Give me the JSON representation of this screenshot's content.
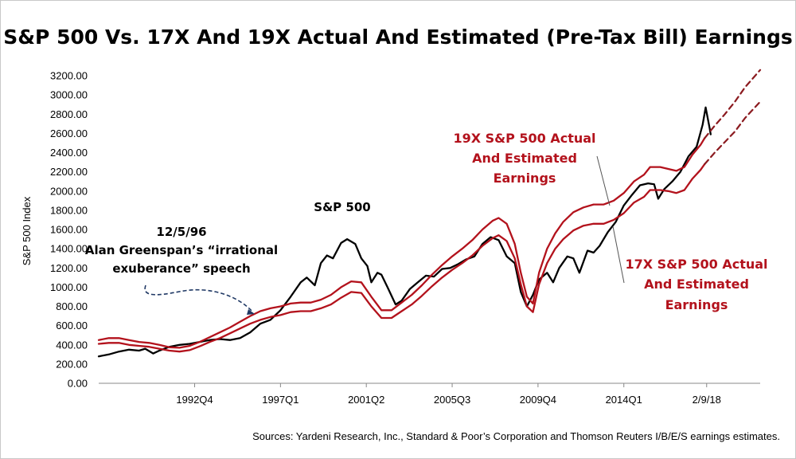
{
  "chart_data": {
    "type": "line",
    "title": "S&P 500 Vs. 17X And 19X Actual And Estimated (Pre-Tax Bill) Earnings",
    "ylabel": "S&P 500 Index",
    "ylim": [
      0,
      3200
    ],
    "yticks": [
      "0.00",
      "200.00",
      "400.00",
      "600.00",
      "800.00",
      "1000.00",
      "1200.00",
      "1400.00",
      "1600.00",
      "1800.00",
      "2000.00",
      "2200.00",
      "2400.00",
      "2600.00",
      "2800.00",
      "3000.00",
      "3200.00"
    ],
    "xlim": [
      1988.0,
      2020.75
    ],
    "xticks": [
      {
        "x": 1992.75,
        "label": "1992Q4"
      },
      {
        "x": 1997.0,
        "label": "1997Q1"
      },
      {
        "x": 2001.25,
        "label": "2001Q2"
      },
      {
        "x": 2005.5,
        "label": "2005Q3"
      },
      {
        "x": 2009.75,
        "label": "2009Q4"
      },
      {
        "x": 2014.0,
        "label": "2014Q1"
      },
      {
        "x": 2018.1,
        "label": "2/9/18"
      }
    ],
    "series": [
      {
        "name": "S&P 500",
        "color": "#000000",
        "style": "solid",
        "points": [
          [
            1988.0,
            280
          ],
          [
            1988.5,
            300
          ],
          [
            1989.0,
            330
          ],
          [
            1989.5,
            350
          ],
          [
            1990.0,
            340
          ],
          [
            1990.3,
            360
          ],
          [
            1990.7,
            310
          ],
          [
            1991.0,
            340
          ],
          [
            1991.5,
            380
          ],
          [
            1992.0,
            400
          ],
          [
            1992.5,
            410
          ],
          [
            1993.0,
            430
          ],
          [
            1993.5,
            450
          ],
          [
            1994.0,
            460
          ],
          [
            1994.5,
            450
          ],
          [
            1995.0,
            470
          ],
          [
            1995.5,
            530
          ],
          [
            1996.0,
            620
          ],
          [
            1996.5,
            660
          ],
          [
            1997.0,
            760
          ],
          [
            1997.5,
            900
          ],
          [
            1998.0,
            1050
          ],
          [
            1998.3,
            1100
          ],
          [
            1998.7,
            1020
          ],
          [
            1999.0,
            1250
          ],
          [
            1999.3,
            1330
          ],
          [
            1999.6,
            1300
          ],
          [
            2000.0,
            1460
          ],
          [
            2000.3,
            1500
          ],
          [
            2000.7,
            1450
          ],
          [
            2001.0,
            1300
          ],
          [
            2001.3,
            1220
          ],
          [
            2001.5,
            1050
          ],
          [
            2001.8,
            1150
          ],
          [
            2002.0,
            1130
          ],
          [
            2002.3,
            1000
          ],
          [
            2002.7,
            820
          ],
          [
            2003.0,
            860
          ],
          [
            2003.4,
            980
          ],
          [
            2003.8,
            1050
          ],
          [
            2004.2,
            1120
          ],
          [
            2004.6,
            1110
          ],
          [
            2005.0,
            1190
          ],
          [
            2005.4,
            1200
          ],
          [
            2005.8,
            1240
          ],
          [
            2006.2,
            1290
          ],
          [
            2006.6,
            1320
          ],
          [
            2007.0,
            1450
          ],
          [
            2007.4,
            1520
          ],
          [
            2007.8,
            1490
          ],
          [
            2008.2,
            1320
          ],
          [
            2008.6,
            1250
          ],
          [
            2008.9,
            950
          ],
          [
            2009.2,
            800
          ],
          [
            2009.5,
            920
          ],
          [
            2009.8,
            1080
          ],
          [
            2010.2,
            1150
          ],
          [
            2010.5,
            1050
          ],
          [
            2010.8,
            1200
          ],
          [
            2011.2,
            1320
          ],
          [
            2011.5,
            1300
          ],
          [
            2011.8,
            1150
          ],
          [
            2012.2,
            1380
          ],
          [
            2012.5,
            1360
          ],
          [
            2012.8,
            1430
          ],
          [
            2013.2,
            1570
          ],
          [
            2013.6,
            1680
          ],
          [
            2014.0,
            1850
          ],
          [
            2014.4,
            1960
          ],
          [
            2014.8,
            2060
          ],
          [
            2015.2,
            2080
          ],
          [
            2015.5,
            2070
          ],
          [
            2015.7,
            1920
          ],
          [
            2016.0,
            2020
          ],
          [
            2016.4,
            2100
          ],
          [
            2016.8,
            2200
          ],
          [
            2017.2,
            2360
          ],
          [
            2017.6,
            2460
          ],
          [
            2017.9,
            2690
          ],
          [
            2018.05,
            2870
          ],
          [
            2018.25,
            2650
          ],
          [
            2018.3,
            2590
          ]
        ]
      },
      {
        "name": "19X S&P 500 Actual And Estimated Earnings",
        "color": "#b3121c",
        "style": "solid",
        "points": [
          [
            1988.0,
            450
          ],
          [
            1988.5,
            470
          ],
          [
            1989.0,
            470
          ],
          [
            1989.5,
            450
          ],
          [
            1990.0,
            430
          ],
          [
            1990.5,
            420
          ],
          [
            1991.0,
            400
          ],
          [
            1991.5,
            375
          ],
          [
            1992.0,
            370
          ],
          [
            1992.5,
            390
          ],
          [
            1993.0,
            430
          ],
          [
            1993.5,
            480
          ],
          [
            1994.0,
            530
          ],
          [
            1994.5,
            580
          ],
          [
            1995.0,
            640
          ],
          [
            1995.5,
            700
          ],
          [
            1996.0,
            750
          ],
          [
            1996.5,
            780
          ],
          [
            1997.0,
            800
          ],
          [
            1997.5,
            830
          ],
          [
            1998.0,
            840
          ],
          [
            1998.5,
            840
          ],
          [
            1999.0,
            870
          ],
          [
            1999.5,
            920
          ],
          [
            2000.0,
            1000
          ],
          [
            2000.5,
            1060
          ],
          [
            2001.0,
            1050
          ],
          [
            2001.5,
            900
          ],
          [
            2002.0,
            760
          ],
          [
            2002.5,
            760
          ],
          [
            2003.0,
            840
          ],
          [
            2003.5,
            920
          ],
          [
            2004.0,
            1020
          ],
          [
            2004.5,
            1130
          ],
          [
            2005.0,
            1230
          ],
          [
            2005.5,
            1320
          ],
          [
            2006.0,
            1400
          ],
          [
            2006.5,
            1490
          ],
          [
            2007.0,
            1600
          ],
          [
            2007.5,
            1690
          ],
          [
            2007.8,
            1720
          ],
          [
            2008.2,
            1660
          ],
          [
            2008.6,
            1450
          ],
          [
            2008.9,
            1150
          ],
          [
            2009.2,
            900
          ],
          [
            2009.5,
            830
          ],
          [
            2009.8,
            1150
          ],
          [
            2010.2,
            1400
          ],
          [
            2010.6,
            1560
          ],
          [
            2011.0,
            1680
          ],
          [
            2011.5,
            1780
          ],
          [
            2012.0,
            1830
          ],
          [
            2012.5,
            1860
          ],
          [
            2013.0,
            1860
          ],
          [
            2013.5,
            1900
          ],
          [
            2014.0,
            1980
          ],
          [
            2014.5,
            2100
          ],
          [
            2015.0,
            2170
          ],
          [
            2015.3,
            2250
          ],
          [
            2015.8,
            2250
          ],
          [
            2016.2,
            2230
          ],
          [
            2016.6,
            2210
          ],
          [
            2017.0,
            2250
          ],
          [
            2017.4,
            2380
          ],
          [
            2017.8,
            2480
          ],
          [
            2018.0,
            2550
          ]
        ]
      },
      {
        "name": "17X S&P 500 Actual And Estimated Earnings",
        "color": "#b3121c",
        "style": "solid",
        "points": [
          [
            1988.0,
            410
          ],
          [
            1988.5,
            420
          ],
          [
            1989.0,
            420
          ],
          [
            1989.5,
            400
          ],
          [
            1990.0,
            390
          ],
          [
            1990.5,
            380
          ],
          [
            1991.0,
            360
          ],
          [
            1991.5,
            340
          ],
          [
            1992.0,
            330
          ],
          [
            1992.5,
            345
          ],
          [
            1993.0,
            385
          ],
          [
            1993.5,
            430
          ],
          [
            1994.0,
            470
          ],
          [
            1994.5,
            520
          ],
          [
            1995.0,
            570
          ],
          [
            1995.5,
            620
          ],
          [
            1996.0,
            660
          ],
          [
            1996.5,
            690
          ],
          [
            1997.0,
            710
          ],
          [
            1997.5,
            740
          ],
          [
            1998.0,
            750
          ],
          [
            1998.5,
            750
          ],
          [
            1999.0,
            780
          ],
          [
            1999.5,
            820
          ],
          [
            2000.0,
            890
          ],
          [
            2000.5,
            950
          ],
          [
            2001.0,
            940
          ],
          [
            2001.5,
            800
          ],
          [
            2002.0,
            680
          ],
          [
            2002.5,
            680
          ],
          [
            2003.0,
            750
          ],
          [
            2003.5,
            820
          ],
          [
            2004.0,
            910
          ],
          [
            2004.5,
            1010
          ],
          [
            2005.0,
            1100
          ],
          [
            2005.5,
            1180
          ],
          [
            2006.0,
            1250
          ],
          [
            2006.5,
            1330
          ],
          [
            2007.0,
            1430
          ],
          [
            2007.5,
            1510
          ],
          [
            2007.8,
            1540
          ],
          [
            2008.2,
            1480
          ],
          [
            2008.6,
            1300
          ],
          [
            2008.9,
            1030
          ],
          [
            2009.2,
            800
          ],
          [
            2009.5,
            740
          ],
          [
            2009.8,
            1030
          ],
          [
            2010.2,
            1250
          ],
          [
            2010.6,
            1400
          ],
          [
            2011.0,
            1500
          ],
          [
            2011.5,
            1590
          ],
          [
            2012.0,
            1640
          ],
          [
            2012.5,
            1660
          ],
          [
            2013.0,
            1660
          ],
          [
            2013.5,
            1700
          ],
          [
            2014.0,
            1770
          ],
          [
            2014.5,
            1880
          ],
          [
            2015.0,
            1940
          ],
          [
            2015.3,
            2010
          ],
          [
            2015.8,
            2010
          ],
          [
            2016.2,
            2000
          ],
          [
            2016.6,
            1980
          ],
          [
            2017.0,
            2010
          ],
          [
            2017.4,
            2130
          ],
          [
            2017.8,
            2220
          ],
          [
            2018.0,
            2280
          ]
        ]
      },
      {
        "name": "19X estimate",
        "color": "#8b1a1f",
        "style": "dashed",
        "points": [
          [
            2018.0,
            2550
          ],
          [
            2018.5,
            2680
          ],
          [
            2019.0,
            2800
          ],
          [
            2019.5,
            2930
          ],
          [
            2020.0,
            3080
          ],
          [
            2020.75,
            3260
          ]
        ]
      },
      {
        "name": "17X estimate",
        "color": "#8b1a1f",
        "style": "dashed",
        "points": [
          [
            2018.0,
            2280
          ],
          [
            2018.5,
            2400
          ],
          [
            2019.0,
            2510
          ],
          [
            2019.5,
            2620
          ],
          [
            2020.0,
            2760
          ],
          [
            2020.75,
            2930
          ]
        ]
      }
    ],
    "annotations": {
      "sp500": "S&P 500",
      "greenspan_date": "12/5/96",
      "greenspan_line1": "Alan Greenspan’s “irrational",
      "greenspan_line2": "exuberance” speech",
      "x19_line1": "19X S&P 500 Actual",
      "x19_line2": "And Estimated",
      "x19_line3": "Earnings",
      "x17_line1": "17X S&P 500 Actual",
      "x17_line2": "And Estimated",
      "x17_line3": "Earnings"
    },
    "source": "Sources: Yardeni Research, Inc., Standard & Poor’s Corporation and Thomson Reuters I/B/E/S earnings estimates.",
    "colors": {
      "index": "#000000",
      "earnings": "#b3121c",
      "estimate_dashed": "#8b1a1f",
      "annotation_arrow": "#1f3864"
    }
  }
}
